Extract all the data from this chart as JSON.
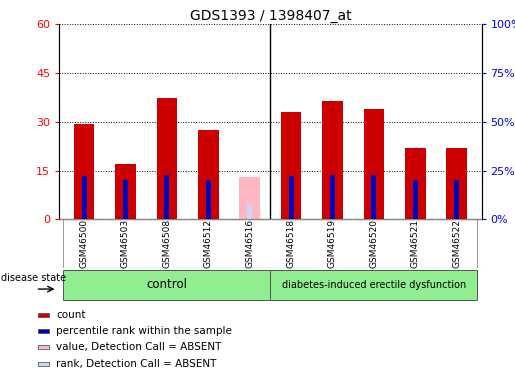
{
  "title": "GDS1393 / 1398407_at",
  "samples": [
    "GSM46500",
    "GSM46503",
    "GSM46508",
    "GSM46512",
    "GSM46516",
    "GSM46518",
    "GSM46519",
    "GSM46520",
    "GSM46521",
    "GSM46522"
  ],
  "counts": [
    29.5,
    17.0,
    37.5,
    27.5,
    null,
    33.0,
    36.5,
    34.0,
    22.0,
    22.0
  ],
  "ranks_pct": [
    22.0,
    20.0,
    23.0,
    20.0,
    null,
    22.0,
    23.0,
    23.0,
    20.0,
    20.0
  ],
  "absent_count": [
    null,
    null,
    null,
    null,
    13.0,
    null,
    null,
    null,
    null,
    null
  ],
  "absent_rank_pct": [
    null,
    null,
    null,
    null,
    8.0,
    null,
    null,
    null,
    null,
    null
  ],
  "group_separator_idx": 4.5,
  "ylim_left": [
    0,
    60
  ],
  "ylim_right": [
    0,
    100
  ],
  "yticks_left": [
    0,
    15,
    30,
    45,
    60
  ],
  "yticks_right": [
    0,
    25,
    50,
    75,
    100
  ],
  "ytick_labels_right": [
    "0%",
    "25%",
    "50%",
    "75%",
    "100%"
  ],
  "bar_color_red": "#cc0000",
  "bar_color_blue": "#0000bb",
  "bar_color_pink": "#ffb6c1",
  "bar_color_lightblue": "#c8d8f0",
  "bg_color": "#ffffff",
  "label_area_color": "#d0d0d0",
  "legend_items": [
    {
      "label": "count",
      "color": "#cc0000"
    },
    {
      "label": "percentile rank within the sample",
      "color": "#0000bb"
    },
    {
      "label": "value, Detection Call = ABSENT",
      "color": "#ffb6c1"
    },
    {
      "label": "rank, Detection Call = ABSENT",
      "color": "#c8d8f0"
    }
  ]
}
